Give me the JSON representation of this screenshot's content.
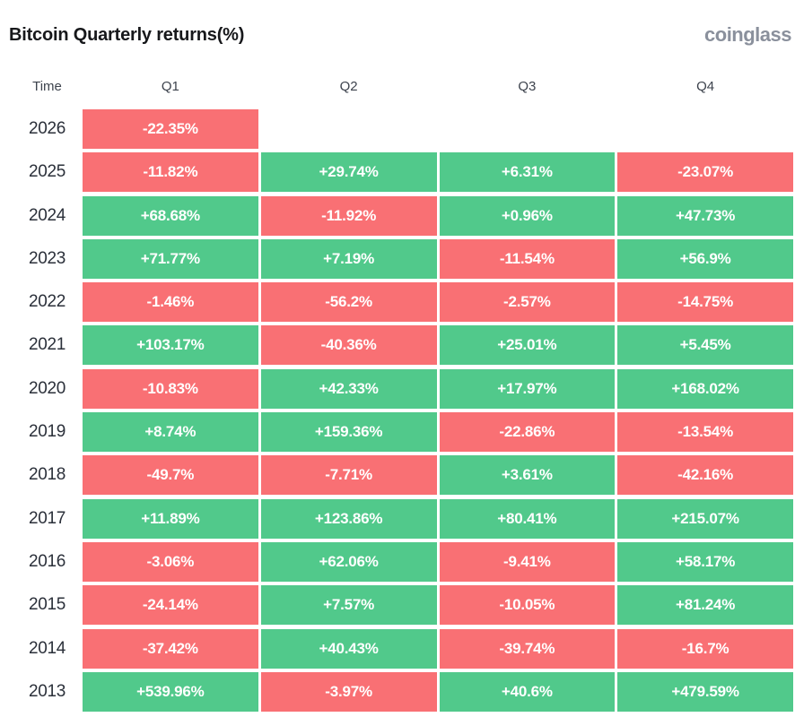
{
  "header": {
    "title": "Bitcoin Quarterly returns(%)",
    "logo_text": "coinglass"
  },
  "table": {
    "time_label": "Time",
    "quarters": [
      "Q1",
      "Q2",
      "Q3",
      "Q4"
    ],
    "rows": [
      {
        "year": "2026",
        "cells": [
          "-22.35%",
          null,
          null,
          null
        ]
      },
      {
        "year": "2025",
        "cells": [
          "-11.82%",
          "+29.74%",
          "+6.31%",
          "-23.07%"
        ]
      },
      {
        "year": "2024",
        "cells": [
          "+68.68%",
          "-11.92%",
          "+0.96%",
          "+47.73%"
        ]
      },
      {
        "year": "2023",
        "cells": [
          "+71.77%",
          "+7.19%",
          "-11.54%",
          "+56.9%"
        ]
      },
      {
        "year": "2022",
        "cells": [
          "-1.46%",
          "-56.2%",
          "-2.57%",
          "-14.75%"
        ]
      },
      {
        "year": "2021",
        "cells": [
          "+103.17%",
          "-40.36%",
          "+25.01%",
          "+5.45%"
        ]
      },
      {
        "year": "2020",
        "cells": [
          "-10.83%",
          "+42.33%",
          "+17.97%",
          "+168.02%"
        ]
      },
      {
        "year": "2019",
        "cells": [
          "+8.74%",
          "+159.36%",
          "-22.86%",
          "-13.54%"
        ]
      },
      {
        "year": "2018",
        "cells": [
          "-49.7%",
          "-7.71%",
          "+3.61%",
          "-42.16%"
        ]
      },
      {
        "year": "2017",
        "cells": [
          "+11.89%",
          "+123.86%",
          "+80.41%",
          "+215.07%"
        ]
      },
      {
        "year": "2016",
        "cells": [
          "-3.06%",
          "+62.06%",
          "-9.41%",
          "+58.17%"
        ]
      },
      {
        "year": "2015",
        "cells": [
          "-24.14%",
          "+7.57%",
          "-10.05%",
          "+81.24%"
        ]
      },
      {
        "year": "2014",
        "cells": [
          "-37.42%",
          "+40.43%",
          "-39.74%",
          "-16.7%"
        ]
      },
      {
        "year": "2013",
        "cells": [
          "+539.96%",
          "-3.97%",
          "+40.6%",
          "+479.59%"
        ]
      }
    ]
  },
  "colors": {
    "positive": "#51c98b",
    "negative": "#f97074",
    "cell_text": "#ffffff",
    "title_text": "#17181b",
    "logo_text": "#8a909c",
    "header_text": "#3d434d",
    "year_text": "#2b303a",
    "background": "#ffffff"
  },
  "chart_data": {
    "type": "heatmap",
    "title": "Bitcoin Quarterly returns(%)",
    "columns": [
      "Q1",
      "Q2",
      "Q3",
      "Q4"
    ],
    "rows": [
      "2026",
      "2025",
      "2024",
      "2023",
      "2022",
      "2021",
      "2020",
      "2019",
      "2018",
      "2017",
      "2016",
      "2015",
      "2014",
      "2013"
    ],
    "values": [
      [
        -22.35,
        null,
        null,
        null
      ],
      [
        -11.82,
        29.74,
        6.31,
        -23.07
      ],
      [
        68.68,
        -11.92,
        0.96,
        47.73
      ],
      [
        71.77,
        7.19,
        -11.54,
        56.9
      ],
      [
        -1.46,
        -56.2,
        -2.57,
        -14.75
      ],
      [
        103.17,
        -40.36,
        25.01,
        5.45
      ],
      [
        -10.83,
        42.33,
        17.97,
        168.02
      ],
      [
        8.74,
        159.36,
        -22.86,
        -13.54
      ],
      [
        -49.7,
        -7.71,
        3.61,
        -42.16
      ],
      [
        11.89,
        123.86,
        80.41,
        215.07
      ],
      [
        -3.06,
        62.06,
        -9.41,
        58.17
      ],
      [
        -24.14,
        7.57,
        -10.05,
        81.24
      ],
      [
        -37.42,
        40.43,
        -39.74,
        -16.7
      ],
      [
        539.96,
        -3.97,
        40.6,
        479.59
      ]
    ],
    "value_unit": "%",
    "positive_color": "#51c98b",
    "negative_color": "#f97074",
    "legend": "none",
    "grid": false
  }
}
